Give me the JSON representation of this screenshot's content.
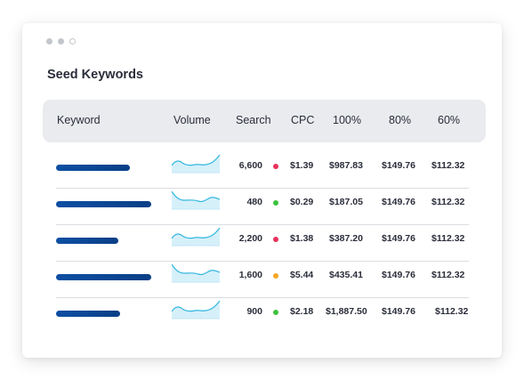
{
  "window": {
    "controls": [
      "dot-filled",
      "dot-filled",
      "dot-outline"
    ]
  },
  "title": "Seed Keywords",
  "table": {
    "columns": [
      "Keyword",
      "Volume",
      "Search",
      "CPC",
      "100%",
      "80%",
      "60%"
    ],
    "rows": [
      {
        "keyword_bar": 0.72,
        "volume_trend": "rising",
        "search": "6,600",
        "status": "red",
        "cpc": "$1.39",
        "p100": "$987.83",
        "p80": "$149.76",
        "p60": "$112.32"
      },
      {
        "keyword_bar": 0.93,
        "volume_trend": "falling",
        "search": "480",
        "status": "green",
        "cpc": "$0.29",
        "p100": "$187.05",
        "p80": "$149.76",
        "p60": "$112.32"
      },
      {
        "keyword_bar": 0.61,
        "volume_trend": "rising",
        "search": "2,200",
        "status": "red",
        "cpc": "$1.38",
        "p100": "$387.20",
        "p80": "$149.76",
        "p60": "$112.32"
      },
      {
        "keyword_bar": 0.93,
        "volume_trend": "falling",
        "search": "1,600",
        "status": "orange",
        "cpc": "$5.44",
        "p100": "$435.41",
        "p80": "$149.76",
        "p60": "$112.32"
      },
      {
        "keyword_bar": 0.63,
        "volume_trend": "rising",
        "search": "900",
        "status": "green",
        "cpc": "$2.18",
        "p100": "$1,887.50",
        "p80": "$149.76",
        "p60": "$112.32"
      }
    ]
  },
  "colors": {
    "red": "#e8315b",
    "green": "#3cc23c",
    "orange": "#f5a623",
    "keyword_bar": "#0d4fa3",
    "sparkline_stroke": "#35b8e0",
    "sparkline_fill": "#d6f0fa"
  }
}
